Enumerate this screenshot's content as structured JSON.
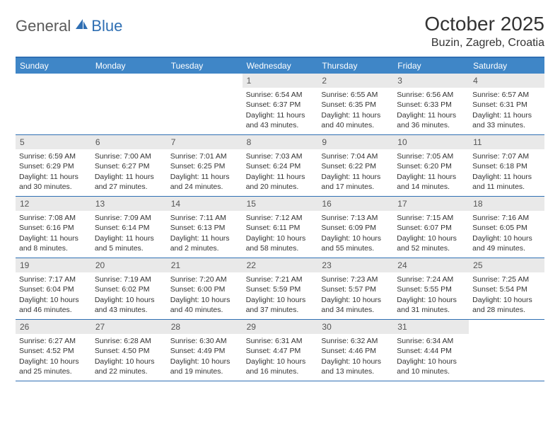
{
  "brand": {
    "general": "General",
    "blue": "Blue"
  },
  "title": "October 2025",
  "location": "Buzin, Zagreb, Croatia",
  "colors": {
    "header_bar": "#3f86c7",
    "accent_line": "#2f6fb3",
    "daynum_bg": "#e9e9e9",
    "text": "#333333",
    "logo_gray": "#5a5a5a",
    "logo_blue": "#2f6fb3",
    "white": "#ffffff"
  },
  "days_of_week": [
    "Sunday",
    "Monday",
    "Tuesday",
    "Wednesday",
    "Thursday",
    "Friday",
    "Saturday"
  ],
  "weeks": [
    [
      null,
      null,
      null,
      {
        "n": "1",
        "sunrise": "6:54 AM",
        "sunset": "6:37 PM",
        "daylight": "11 hours and 43 minutes."
      },
      {
        "n": "2",
        "sunrise": "6:55 AM",
        "sunset": "6:35 PM",
        "daylight": "11 hours and 40 minutes."
      },
      {
        "n": "3",
        "sunrise": "6:56 AM",
        "sunset": "6:33 PM",
        "daylight": "11 hours and 36 minutes."
      },
      {
        "n": "4",
        "sunrise": "6:57 AM",
        "sunset": "6:31 PM",
        "daylight": "11 hours and 33 minutes."
      }
    ],
    [
      {
        "n": "5",
        "sunrise": "6:59 AM",
        "sunset": "6:29 PM",
        "daylight": "11 hours and 30 minutes."
      },
      {
        "n": "6",
        "sunrise": "7:00 AM",
        "sunset": "6:27 PM",
        "daylight": "11 hours and 27 minutes."
      },
      {
        "n": "7",
        "sunrise": "7:01 AM",
        "sunset": "6:25 PM",
        "daylight": "11 hours and 24 minutes."
      },
      {
        "n": "8",
        "sunrise": "7:03 AM",
        "sunset": "6:24 PM",
        "daylight": "11 hours and 20 minutes."
      },
      {
        "n": "9",
        "sunrise": "7:04 AM",
        "sunset": "6:22 PM",
        "daylight": "11 hours and 17 minutes."
      },
      {
        "n": "10",
        "sunrise": "7:05 AM",
        "sunset": "6:20 PM",
        "daylight": "11 hours and 14 minutes."
      },
      {
        "n": "11",
        "sunrise": "7:07 AM",
        "sunset": "6:18 PM",
        "daylight": "11 hours and 11 minutes."
      }
    ],
    [
      {
        "n": "12",
        "sunrise": "7:08 AM",
        "sunset": "6:16 PM",
        "daylight": "11 hours and 8 minutes."
      },
      {
        "n": "13",
        "sunrise": "7:09 AM",
        "sunset": "6:14 PM",
        "daylight": "11 hours and 5 minutes."
      },
      {
        "n": "14",
        "sunrise": "7:11 AM",
        "sunset": "6:13 PM",
        "daylight": "11 hours and 2 minutes."
      },
      {
        "n": "15",
        "sunrise": "7:12 AM",
        "sunset": "6:11 PM",
        "daylight": "10 hours and 58 minutes."
      },
      {
        "n": "16",
        "sunrise": "7:13 AM",
        "sunset": "6:09 PM",
        "daylight": "10 hours and 55 minutes."
      },
      {
        "n": "17",
        "sunrise": "7:15 AM",
        "sunset": "6:07 PM",
        "daylight": "10 hours and 52 minutes."
      },
      {
        "n": "18",
        "sunrise": "7:16 AM",
        "sunset": "6:05 PM",
        "daylight": "10 hours and 49 minutes."
      }
    ],
    [
      {
        "n": "19",
        "sunrise": "7:17 AM",
        "sunset": "6:04 PM",
        "daylight": "10 hours and 46 minutes."
      },
      {
        "n": "20",
        "sunrise": "7:19 AM",
        "sunset": "6:02 PM",
        "daylight": "10 hours and 43 minutes."
      },
      {
        "n": "21",
        "sunrise": "7:20 AM",
        "sunset": "6:00 PM",
        "daylight": "10 hours and 40 minutes."
      },
      {
        "n": "22",
        "sunrise": "7:21 AM",
        "sunset": "5:59 PM",
        "daylight": "10 hours and 37 minutes."
      },
      {
        "n": "23",
        "sunrise": "7:23 AM",
        "sunset": "5:57 PM",
        "daylight": "10 hours and 34 minutes."
      },
      {
        "n": "24",
        "sunrise": "7:24 AM",
        "sunset": "5:55 PM",
        "daylight": "10 hours and 31 minutes."
      },
      {
        "n": "25",
        "sunrise": "7:25 AM",
        "sunset": "5:54 PM",
        "daylight": "10 hours and 28 minutes."
      }
    ],
    [
      {
        "n": "26",
        "sunrise": "6:27 AM",
        "sunset": "4:52 PM",
        "daylight": "10 hours and 25 minutes."
      },
      {
        "n": "27",
        "sunrise": "6:28 AM",
        "sunset": "4:50 PM",
        "daylight": "10 hours and 22 minutes."
      },
      {
        "n": "28",
        "sunrise": "6:30 AM",
        "sunset": "4:49 PM",
        "daylight": "10 hours and 19 minutes."
      },
      {
        "n": "29",
        "sunrise": "6:31 AM",
        "sunset": "4:47 PM",
        "daylight": "10 hours and 16 minutes."
      },
      {
        "n": "30",
        "sunrise": "6:32 AM",
        "sunset": "4:46 PM",
        "daylight": "10 hours and 13 minutes."
      },
      {
        "n": "31",
        "sunrise": "6:34 AM",
        "sunset": "4:44 PM",
        "daylight": "10 hours and 10 minutes."
      },
      null
    ]
  ],
  "labels": {
    "sunrise": "Sunrise:",
    "sunset": "Sunset:",
    "daylight": "Daylight:"
  }
}
